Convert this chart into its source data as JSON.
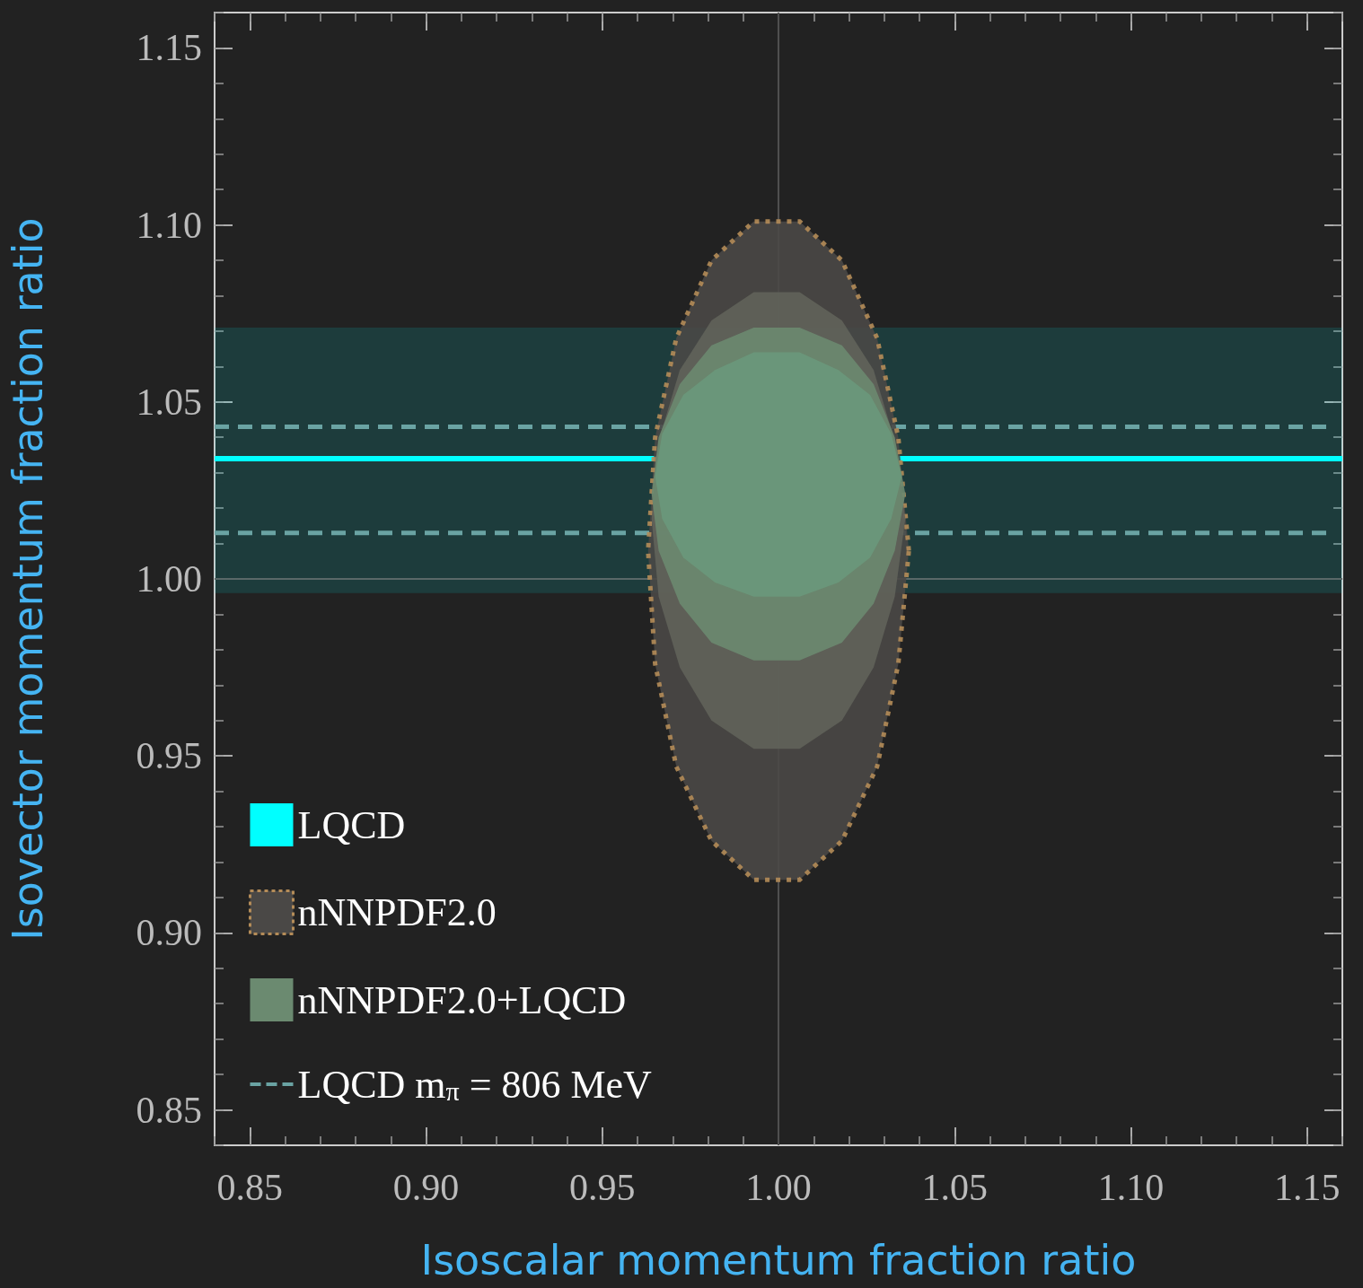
{
  "chart_data": {
    "type": "area",
    "xlabel": "Isoscalar momentum fraction ratio",
    "ylabel": "Isovector momentum fraction ratio",
    "xlim": [
      0.84,
      1.16
    ],
    "ylim": [
      0.84,
      1.16
    ],
    "xticks": [
      {
        "value": 0.85,
        "label": "0.85"
      },
      {
        "value": 0.9,
        "label": "0.90"
      },
      {
        "value": 0.95,
        "label": "0.95"
      },
      {
        "value": 1.0,
        "label": "1.00"
      },
      {
        "value": 1.05,
        "label": "1.05"
      },
      {
        "value": 1.1,
        "label": "1.10"
      },
      {
        "value": 1.15,
        "label": "1.15"
      }
    ],
    "yticks": [
      {
        "value": 0.85,
        "label": "0.85"
      },
      {
        "value": 0.9,
        "label": "0.90"
      },
      {
        "value": 0.95,
        "label": "0.95"
      },
      {
        "value": 1.0,
        "label": "1.00"
      },
      {
        "value": 1.05,
        "label": "1.05"
      },
      {
        "value": 1.1,
        "label": "1.10"
      },
      {
        "value": 1.15,
        "label": "1.15"
      }
    ],
    "grid": false,
    "legend": "bottom left",
    "ref_lines": [
      {
        "axis": "x",
        "value": 1.0,
        "color": "#4f4f4f"
      },
      {
        "axis": "y",
        "value": 1.0,
        "color": "#5a6868"
      }
    ],
    "series": [
      {
        "name": "LQCD",
        "type": "line",
        "color": "#00ffff",
        "x": [
          0.84,
          1.16
        ],
        "values": [
          1.034,
          1.034
        ],
        "lower": [
          0.996,
          0.996
        ],
        "upper": [
          1.071,
          1.071
        ]
      },
      {
        "name": "nNNPDF2.0",
        "line_style": "dotted",
        "color": "#4a4846",
        "x": [
          1.037,
          1.034,
          1.028,
          1.018,
          1.006,
          0.993,
          0.981,
          0.971,
          0.965,
          0.963,
          0.965,
          0.971,
          0.981,
          0.993,
          1.006,
          1.018,
          1.028,
          1.034
        ],
        "values": [
          1.008,
          1.04,
          1.068,
          1.09,
          1.101,
          1.101,
          1.09,
          1.068,
          1.04,
          1.008,
          0.976,
          0.947,
          0.926,
          0.915,
          0.915,
          0.926,
          0.947,
          0.976
        ]
      },
      {
        "color": "#60635a",
        "x": [
          1.036,
          1.033,
          1.027,
          1.018,
          1.006,
          0.993,
          0.981,
          0.972,
          0.966,
          0.964,
          0.966,
          0.972,
          0.981,
          0.993,
          1.006,
          1.018,
          1.027,
          1.033
        ],
        "values": [
          1.017,
          1.039,
          1.059,
          1.073,
          1.081,
          1.081,
          1.073,
          1.059,
          1.039,
          1.017,
          0.995,
          0.975,
          0.96,
          0.952,
          0.952,
          0.96,
          0.975,
          0.995
        ]
      },
      {
        "name": "nNNPDF2.0+LQCD",
        "color": "#6b8a70",
        "x": [
          1.036,
          1.033,
          1.027,
          1.018,
          1.006,
          0.993,
          0.981,
          0.972,
          0.966,
          0.964,
          0.966,
          0.972,
          0.981,
          0.993,
          1.006,
          1.018,
          1.027,
          1.033
        ],
        "values": [
          1.024,
          1.04,
          1.055,
          1.066,
          1.071,
          1.071,
          1.066,
          1.055,
          1.04,
          1.024,
          1.008,
          0.993,
          0.982,
          0.977,
          0.977,
          0.982,
          0.993,
          1.008
        ]
      },
      {
        "color": "#6a987b",
        "x": [
          1.035,
          1.032,
          1.026,
          1.017,
          1.006,
          0.993,
          0.982,
          0.973,
          0.967,
          0.965,
          0.967,
          0.973,
          0.982,
          0.993,
          1.006,
          1.017,
          1.026,
          1.032
        ],
        "values": [
          1.029,
          1.041,
          1.052,
          1.059,
          1.064,
          1.064,
          1.059,
          1.052,
          1.041,
          1.029,
          1.017,
          1.006,
          0.999,
          0.995,
          0.995,
          0.999,
          1.006,
          1.017
        ]
      },
      {
        "name": "LQCD m$_{π}$ = 806 MeV",
        "type": "line",
        "line_style": "dashed",
        "color": "#6aa3a3",
        "x": [
          0.84,
          1.157
        ],
        "values": [
          1.043,
          1.043
        ]
      },
      {
        "type": "line",
        "line_style": "dashed",
        "color": "#6aa3a3",
        "x": [
          0.84,
          1.157
        ],
        "values": [
          1.013,
          1.013
        ]
      }
    ]
  }
}
